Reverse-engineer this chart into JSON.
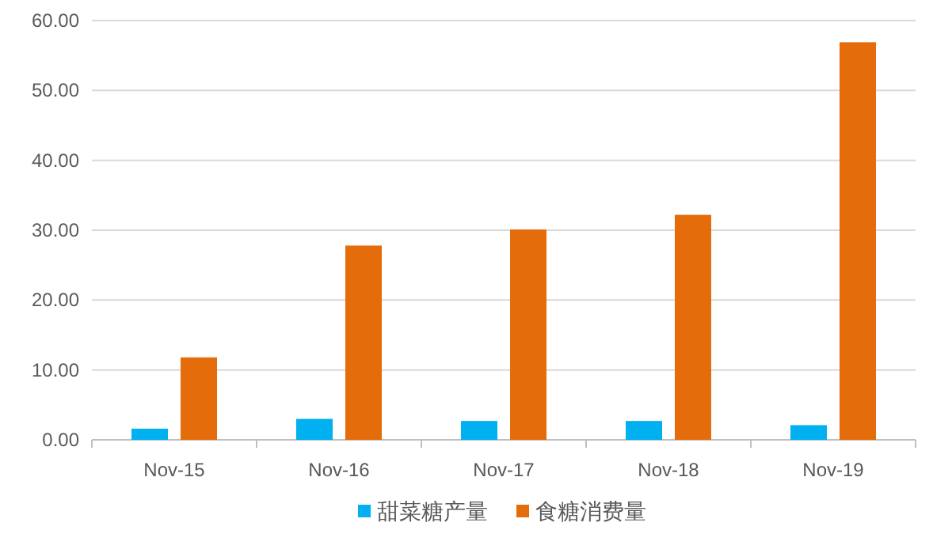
{
  "chart_data": {
    "type": "bar",
    "categories": [
      "Nov-15",
      "Nov-16",
      "Nov-17",
      "Nov-18",
      "Nov-19"
    ],
    "series": [
      {
        "name": "甜菜糖产量",
        "color": "#00b0f0",
        "values": [
          1.6,
          3.0,
          2.7,
          2.7,
          2.1
        ]
      },
      {
        "name": "食糖消费量",
        "color": "#e46c0a",
        "values": [
          11.8,
          27.8,
          30.1,
          32.2,
          56.9
        ]
      }
    ],
    "ylim": [
      0,
      60
    ],
    "yticks": [
      {
        "value": 0,
        "label": "0.00"
      },
      {
        "value": 10,
        "label": "10.00"
      },
      {
        "value": 20,
        "label": "20.00"
      },
      {
        "value": 30,
        "label": "30.00"
      },
      {
        "value": 40,
        "label": "40.00"
      },
      {
        "value": 50,
        "label": "50.00"
      },
      {
        "value": 60,
        "label": "60.00"
      }
    ],
    "grid": "y",
    "legend": "bottom"
  }
}
